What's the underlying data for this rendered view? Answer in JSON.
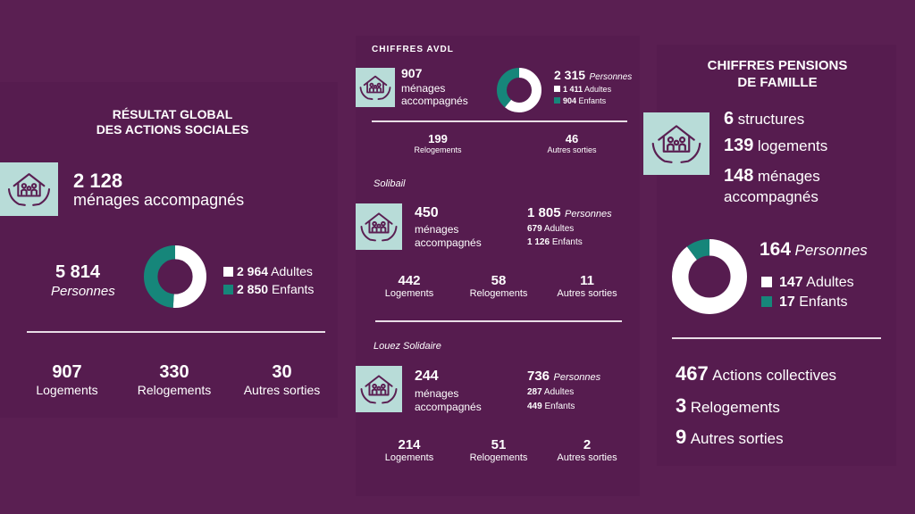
{
  "colors": {
    "background": "#5a1f52",
    "panel": "#561c4f",
    "icon_bg": "#b8dcd8",
    "teal": "#16867a",
    "white": "#ffffff"
  },
  "icon": "house-family-hands-icon",
  "global": {
    "title_line1": "RÉSULTAT GLOBAL",
    "title_line2": "DES ACTIONS SOCIALES",
    "menages_value": "2 128",
    "menages_label": "ménages accompagnés",
    "personnes_value": "5 814",
    "personnes_label": "Personnes",
    "adultes_value": "2 964",
    "adultes_label": "Adultes",
    "enfants_value": "2 850",
    "enfants_label": "Enfants",
    "stats": [
      {
        "value": "907",
        "label": "Logements"
      },
      {
        "value": "330",
        "label": "Relogements"
      },
      {
        "value": "30",
        "label": "Autres sorties"
      }
    ]
  },
  "avdl": {
    "title": "CHIFFRES AVDL",
    "menages_value": "907",
    "menages_line1": "ménages",
    "menages_line2": "accompagnés",
    "personnes_value": "2 315",
    "personnes_label": "Personnes",
    "adultes_value": "1 411",
    "adultes_label": "Adultes",
    "enfants_value": "904",
    "enfants_label": "Enfants",
    "stats": [
      {
        "value": "199",
        "label": "Relogements"
      },
      {
        "value": "46",
        "label": "Autres sorties"
      }
    ]
  },
  "solibail": {
    "title": "Solibail",
    "menages_value": "450",
    "menages_line1": "ménages",
    "menages_line2": "accompagnés",
    "personnes_value": "1 805",
    "personnes_label": "Personnes",
    "adultes_value": "679",
    "adultes_label": "Adultes",
    "enfants_value": "1 126",
    "enfants_label": "Enfants",
    "stats": [
      {
        "value": "442",
        "label": "Logements"
      },
      {
        "value": "58",
        "label": "Relogements"
      },
      {
        "value": "11",
        "label": "Autres sorties"
      }
    ]
  },
  "louez": {
    "title": "Louez Solidaire",
    "menages_value": "244",
    "menages_line1": "ménages",
    "menages_line2": "accompagnés",
    "personnes_value": "736",
    "personnes_label": "Personnes",
    "adultes_value": "287",
    "adultes_label": "Adultes",
    "enfants_value": "449",
    "enfants_label": "Enfants",
    "stats": [
      {
        "value": "214",
        "label": "Logements"
      },
      {
        "value": "51",
        "label": "Relogements"
      },
      {
        "value": "2",
        "label": "Autres sorties"
      }
    ]
  },
  "pensions": {
    "title_line1": "CHIFFRES PENSIONS",
    "title_line2": "DE FAMILLE",
    "structures_value": "6",
    "structures_label": "structures",
    "logements_value": "139",
    "logements_label": "logements",
    "menages_value": "148",
    "menages_line1": "ménages",
    "menages_line2": "accompagnés",
    "personnes_value": "164",
    "personnes_label": "Personnes",
    "adultes_value": "147",
    "adultes_label": "Adultes",
    "enfants_value": "17",
    "enfants_label": "Enfants",
    "stats": [
      {
        "value": "467",
        "label": "Actions collectives"
      },
      {
        "value": "3",
        "label": "Relogements"
      },
      {
        "value": "9",
        "label": "Autres sorties"
      }
    ]
  },
  "chart_data": [
    {
      "type": "pie",
      "series": [
        {
          "values": [
            2964,
            2850
          ]
        }
      ],
      "categories": [
        "Adultes",
        "Enfants"
      ],
      "colors": [
        "#ffffff",
        "#16867a"
      ]
    },
    {
      "type": "pie",
      "series": [
        {
          "values": [
            1411,
            904
          ]
        }
      ],
      "categories": [
        "Adultes",
        "Enfants"
      ],
      "colors": [
        "#ffffff",
        "#16867a"
      ]
    },
    {
      "type": "pie",
      "series": [
        {
          "values": [
            147,
            17
          ]
        }
      ],
      "categories": [
        "Adultes",
        "Enfants"
      ],
      "colors": [
        "#ffffff",
        "#16867a"
      ]
    }
  ]
}
